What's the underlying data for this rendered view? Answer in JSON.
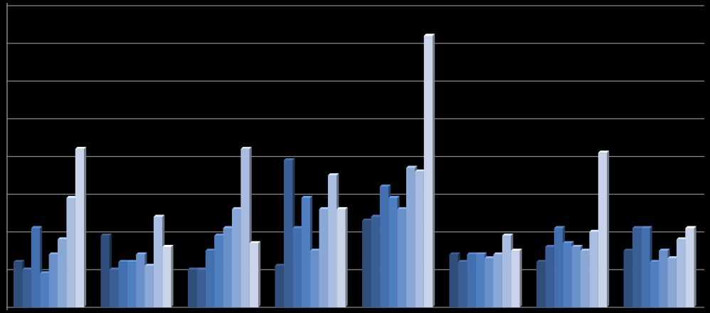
{
  "chart_data": {
    "type": "bar",
    "categories": [
      null,
      null,
      null,
      null,
      null,
      null,
      null,
      null
    ],
    "ylim": [
      0,
      8
    ],
    "yticks": [
      0,
      1,
      2,
      3,
      4,
      5,
      6,
      7,
      8
    ],
    "grid": true,
    "series": [
      {
        "color": "#2f4e7c",
        "values": [
          1.2,
          1.9,
          1.0,
          1.1,
          2.3,
          1.4,
          1.2,
          1.5
        ]
      },
      {
        "color": "#3a5f97",
        "values": [
          1.0,
          1.0,
          1.0,
          3.9,
          2.4,
          1.2,
          1.6,
          2.1
        ]
      },
      {
        "color": "#4470b0",
        "values": [
          2.1,
          1.2,
          1.5,
          2.1,
          3.2,
          1.4,
          2.1,
          2.1
        ]
      },
      {
        "color": "#4f7fc0",
        "values": [
          0.9,
          1.2,
          1.9,
          2.9,
          2.9,
          1.4,
          1.7,
          1.2
        ]
      },
      {
        "color": "#6a90c9",
        "values": [
          1.4,
          1.4,
          2.1,
          1.5,
          2.6,
          1.3,
          1.6,
          1.5
        ]
      },
      {
        "color": "#8aa8d6",
        "values": [
          1.8,
          1.1,
          2.6,
          2.6,
          3.7,
          1.4,
          1.5,
          1.3
        ]
      },
      {
        "color": "#a9bde0",
        "values": [
          2.9,
          2.4,
          4.2,
          3.5,
          3.6,
          1.9,
          2.0,
          1.8
        ]
      },
      {
        "color": "#c9d4ea",
        "values": [
          4.2,
          1.6,
          1.7,
          2.6,
          7.2,
          1.5,
          4.1,
          2.1
        ]
      }
    ]
  }
}
